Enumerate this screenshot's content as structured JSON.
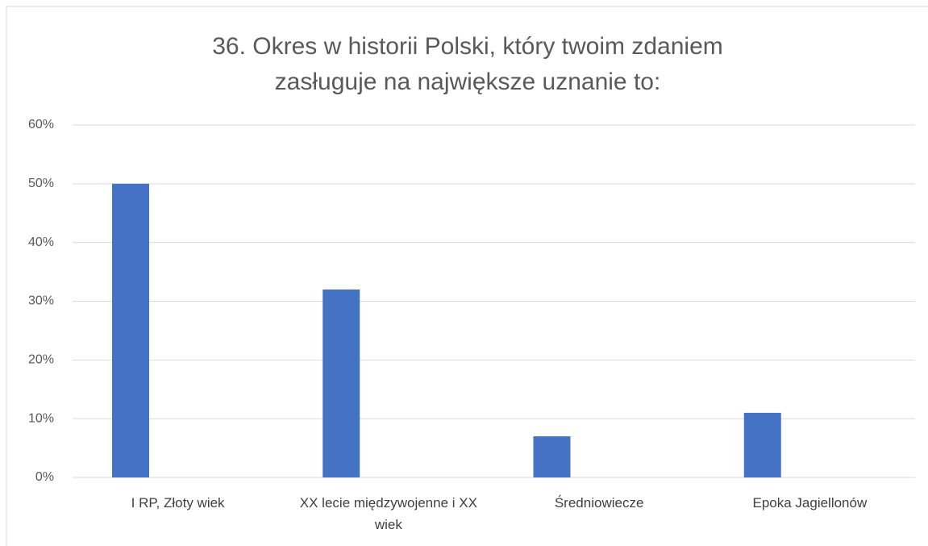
{
  "chart_data": {
    "type": "bar",
    "title": "36. Okres w historii Polski, który twoim zdaniem zasługuje na największe uznanie to:",
    "categories": [
      "I RP, Złoty wiek",
      "XX lecie międzywojenne i XX wiek",
      "Średniowiecze",
      "Epoka Jagiellonów"
    ],
    "values": [
      50,
      32,
      7,
      11
    ],
    "color": "#4472c4",
    "ylim": [
      0,
      60
    ],
    "yticks": [
      {
        "value": 0,
        "label": "0%"
      },
      {
        "value": 10,
        "label": "10%"
      },
      {
        "value": 20,
        "label": "20%"
      },
      {
        "value": 30,
        "label": "30%"
      },
      {
        "value": 40,
        "label": "40%"
      },
      {
        "value": 50,
        "label": "50%"
      },
      {
        "value": 60,
        "label": "60%"
      }
    ],
    "grid": true
  }
}
